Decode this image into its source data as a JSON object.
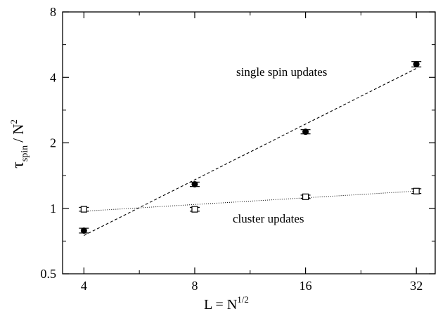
{
  "chart_data": {
    "type": "scatter",
    "xscale": "log2",
    "yscale": "log2",
    "xlim": [
      3.5,
      36
    ],
    "ylim": [
      0.5,
      8
    ],
    "xticks": [
      4,
      8,
      16,
      32
    ],
    "xtick_labels": [
      "4",
      "8",
      "16",
      "32"
    ],
    "yticks": [
      0.5,
      1,
      2,
      4,
      8
    ],
    "ytick_labels": [
      "0.5",
      "1",
      "2",
      "4",
      "8"
    ],
    "xlabel": {
      "main": "L = N",
      "sup": "1/2"
    },
    "ylabel": {
      "tau": "τ",
      "sub": "spin",
      "mid": "/ N",
      "sup": "2"
    },
    "grid": false,
    "series": [
      {
        "annotation": "single spin updates",
        "marker": "filled-circle",
        "points": [
          {
            "x": 4,
            "y": 0.79,
            "err": 0.02
          },
          {
            "x": 8,
            "y": 1.29,
            "err": 0.03
          },
          {
            "x": 16,
            "y": 2.25,
            "err": 0.05
          },
          {
            "x": 32,
            "y": 4.6,
            "err": 0.13
          }
        ],
        "fit": {
          "style": "dashed",
          "from": {
            "x": 4,
            "y": 0.75
          },
          "to": {
            "x": 32,
            "y": 4.4
          }
        }
      },
      {
        "annotation": "cluster updates",
        "marker": "open-square",
        "points": [
          {
            "x": 4,
            "y": 0.99,
            "err": 0.02
          },
          {
            "x": 8,
            "y": 0.99,
            "err": 0.02
          },
          {
            "x": 16,
            "y": 1.13,
            "err": 0.02
          },
          {
            "x": 32,
            "y": 1.2,
            "err": 0.03
          }
        ],
        "fit": {
          "style": "dotted",
          "from": {
            "x": 4,
            "y": 0.97
          },
          "to": {
            "x": 32,
            "y": 1.2
          }
        }
      }
    ]
  }
}
